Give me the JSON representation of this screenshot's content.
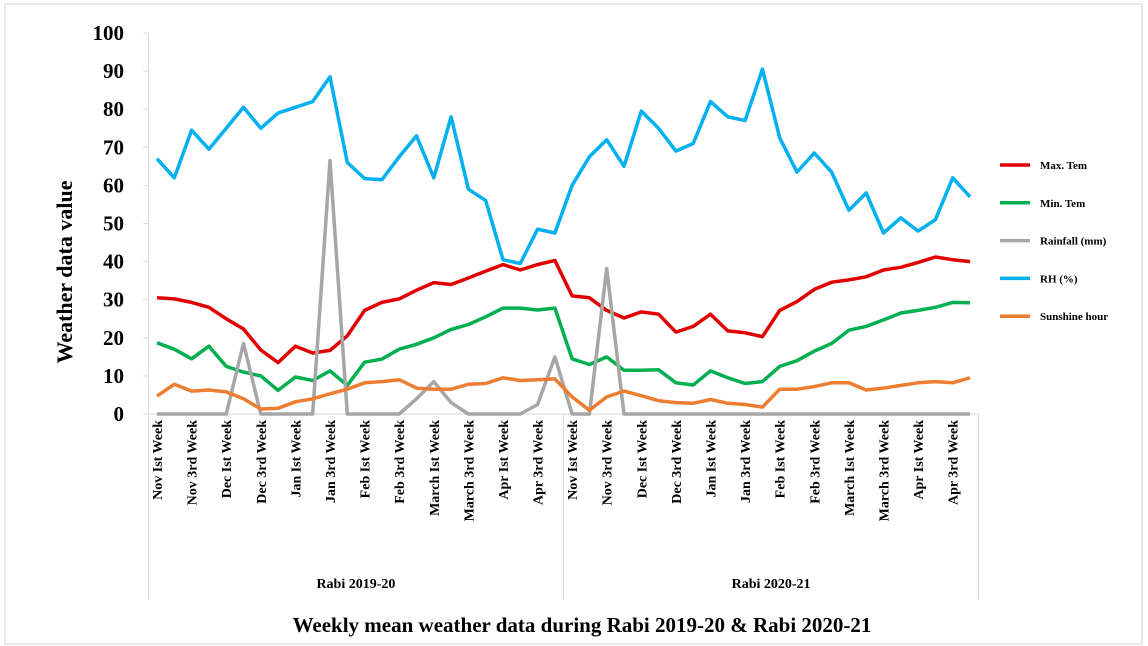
{
  "chart_data": {
    "type": "line",
    "title": "Weekly mean weather data during Rabi 2019-20 & Rabi 2020-21",
    "y_label": "Weather data value",
    "categories": [
      "Nov Ist Week",
      null,
      "Nov 3rd Week",
      null,
      "Dec Ist Week",
      null,
      "Dec 3rd Week",
      null,
      "Jan Ist Week",
      null,
      "Jan 3rd Week",
      null,
      "Feb Ist Week",
      null,
      "Feb 3rd Week",
      null,
      "March Ist Week",
      null,
      "March 3rd Week",
      null,
      "Apr Ist Week",
      null,
      "Apr 3rd Week",
      null,
      "Nov Ist Week",
      null,
      "Nov 3rd Week",
      null,
      "Dec Ist Week",
      null,
      "Dec 3rd Week",
      null,
      "Jan Ist Week",
      null,
      "Jan 3rd Week",
      null,
      "Feb Ist Week",
      null,
      "Feb 3rd Week",
      null,
      "March Ist Week",
      null,
      "March 3rd Week",
      null,
      "Apr Ist Week",
      null,
      "Apr 3rd Week",
      null
    ],
    "groups": [
      "Rabi 2019-20",
      "Rabi 2020-21"
    ],
    "series": [
      {
        "name": "Max. Tem",
        "color": "#e00000",
        "values": [
          30.5,
          30.2,
          29.3,
          28,
          25,
          22.3,
          16.8,
          13.5,
          17.8,
          16,
          16.7,
          20.5,
          27.2,
          29.3,
          30.2,
          32.5,
          34.5,
          34,
          35.7,
          37.5,
          39.2,
          37.8,
          39.2,
          40.3,
          31,
          30.5,
          27.2,
          25.2,
          26.8,
          26.2,
          21.5,
          23,
          26.2,
          21.8,
          21.3,
          20.3,
          27.2,
          29.5,
          32.7,
          34.6,
          35.2,
          36,
          37.8,
          38.5,
          39.8,
          41.2,
          40.5,
          40
        ]
      },
      {
        "name": "Min. Tem",
        "color": "#00b050",
        "values": [
          18.7,
          17,
          14.5,
          17.8,
          12.5,
          11,
          10,
          6.2,
          9.7,
          8.8,
          11.3,
          7.5,
          13.6,
          14.4,
          17,
          18.3,
          20,
          22.2,
          23.5,
          25.5,
          27.8,
          27.8,
          27.3,
          27.8,
          14.5,
          13,
          15,
          11.5,
          11.5,
          11.6,
          8.2,
          7.6,
          11.3,
          9.5,
          8,
          8.5,
          12.5,
          14,
          16.5,
          18.5,
          22,
          23,
          24.7,
          26.5,
          27.2,
          28,
          29.3,
          29.2
        ]
      },
      {
        "name": "Rainfall (mm)",
        "color": "#a6a6a6",
        "values": [
          0,
          0,
          0,
          0,
          0,
          18.5,
          0,
          0,
          0,
          0,
          66.5,
          0,
          0,
          0,
          0,
          4,
          8.5,
          3,
          0,
          0,
          0,
          0,
          2.5,
          15,
          0,
          0,
          38.2,
          0,
          0,
          0,
          0,
          0,
          0,
          0,
          0,
          0,
          0,
          0,
          0,
          0,
          0,
          0,
          0,
          0,
          0,
          0,
          0,
          0
        ]
      },
      {
        "name": "RH (%)",
        "color": "#00b0f0",
        "values": [
          67,
          62,
          74.5,
          69.5,
          75,
          80.5,
          75,
          79,
          80.5,
          82,
          88.5,
          66,
          61.8,
          61.5,
          67.5,
          73,
          62,
          78,
          59,
          56,
          40.5,
          39.5,
          48.5,
          47.5,
          60,
          67.5,
          72,
          65,
          79.5,
          75,
          69,
          71,
          82,
          78,
          77,
          90.5,
          72.5,
          63.5,
          68.5,
          63.5,
          53.5,
          58,
          47.5,
          51.5,
          48,
          51,
          62,
          57
        ]
      },
      {
        "name": "Sunshine hour",
        "color": "#ed7d31",
        "values": [
          4.7,
          7.8,
          6,
          6.3,
          5.8,
          4,
          1.3,
          1.5,
          3.2,
          4,
          5.3,
          6.5,
          8.2,
          8.5,
          9,
          6.8,
          6.5,
          6.5,
          7.8,
          8,
          9.5,
          8.8,
          9,
          9.2,
          4.5,
          1,
          4.5,
          6,
          4.8,
          3.5,
          3,
          2.8,
          3.8,
          2.8,
          2.5,
          1.8,
          6.5,
          6.5,
          7.2,
          8.2,
          8.2,
          6.3,
          6.8,
          7.5,
          8.2,
          8.5,
          8.2,
          9.5
        ]
      }
    ],
    "ylim": [
      0,
      100
    ],
    "yticks": [
      0,
      10,
      20,
      30,
      40,
      50,
      60,
      70,
      80,
      90,
      100
    ],
    "grid": false,
    "legend": "right"
  }
}
